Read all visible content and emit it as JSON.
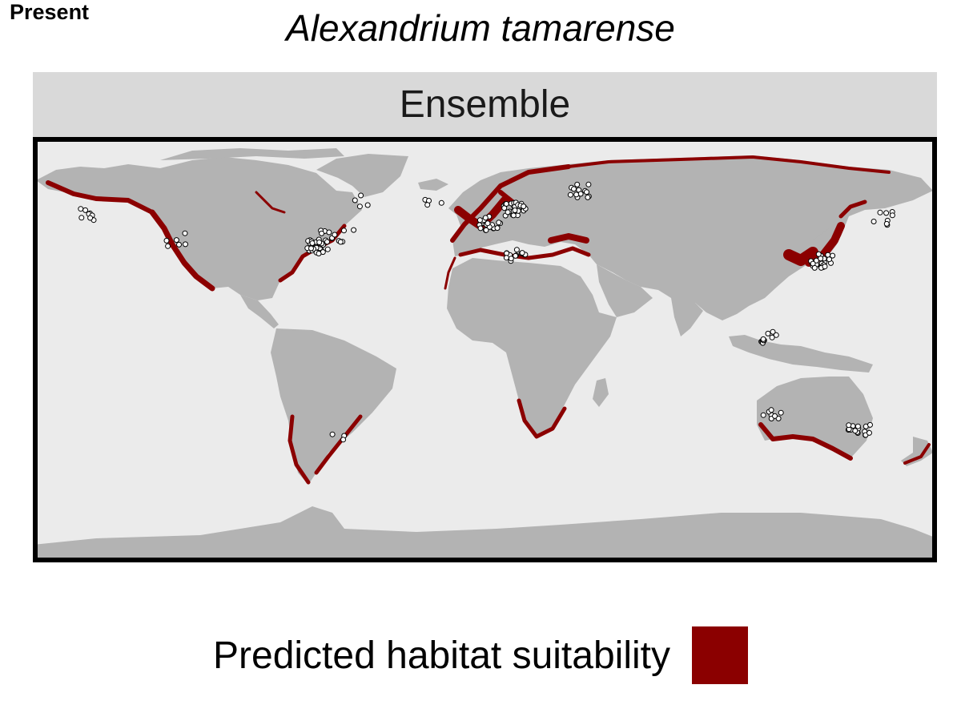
{
  "figure": {
    "corner_tag": "Present",
    "title": "Alexandrium tamarense",
    "panel_label": "Ensemble"
  },
  "legend": {
    "label": "Predicted habitat suitability",
    "swatch_color": "#8b0000"
  },
  "colors": {
    "ocean": "#ebebeb",
    "land": "#b3b3b3",
    "suitable_habitat": "#8b0000",
    "occurrence_fill": "#ffffff",
    "occurrence_stroke": "#000000",
    "panel_strip": "#d9d9d9"
  },
  "map": {
    "projection": "equirectangular",
    "extent": {
      "lon": [
        -180,
        180
      ],
      "lat": [
        -90,
        90
      ]
    },
    "occurrence_clusters": [
      {
        "region": "Alaska",
        "lon": -158,
        "lat": 58,
        "count": 8
      },
      {
        "region": "Pacific Northwest",
        "lon": -124,
        "lat": 47,
        "count": 6
      },
      {
        "region": "Gulf of Maine / Bay of Fundy",
        "lon": -67,
        "lat": 44,
        "count": 30
      },
      {
        "region": "Gulf of St. Lawrence",
        "lon": -62,
        "lat": 48,
        "count": 10
      },
      {
        "region": "Newfoundland",
        "lon": -54,
        "lat": 49,
        "count": 4
      },
      {
        "region": "Greenland",
        "lon": -50,
        "lat": 64,
        "count": 4
      },
      {
        "region": "Iceland",
        "lon": -20,
        "lat": 65,
        "count": 4
      },
      {
        "region": "Scandinavia / Baltic",
        "lon": 12,
        "lat": 60,
        "count": 30
      },
      {
        "region": "North Sea / UK",
        "lon": 2,
        "lat": 54,
        "count": 20
      },
      {
        "region": "Barents / White Sea",
        "lon": 38,
        "lat": 68,
        "count": 14
      },
      {
        "region": "Mediterranean",
        "lon": 12,
        "lat": 40,
        "count": 14
      },
      {
        "region": "Japan / Korea",
        "lon": 135,
        "lat": 38,
        "count": 25
      },
      {
        "region": "Kamchatka",
        "lon": 160,
        "lat": 56,
        "count": 8
      },
      {
        "region": "Southeast Asia",
        "lon": 115,
        "lat": 5,
        "count": 12
      },
      {
        "region": "Western Australia",
        "lon": 115,
        "lat": -28,
        "count": 8
      },
      {
        "region": "Eastern Australia",
        "lon": 150,
        "lat": -34,
        "count": 16
      },
      {
        "region": "Argentina",
        "lon": -60,
        "lat": -38,
        "count": 3
      }
    ]
  }
}
